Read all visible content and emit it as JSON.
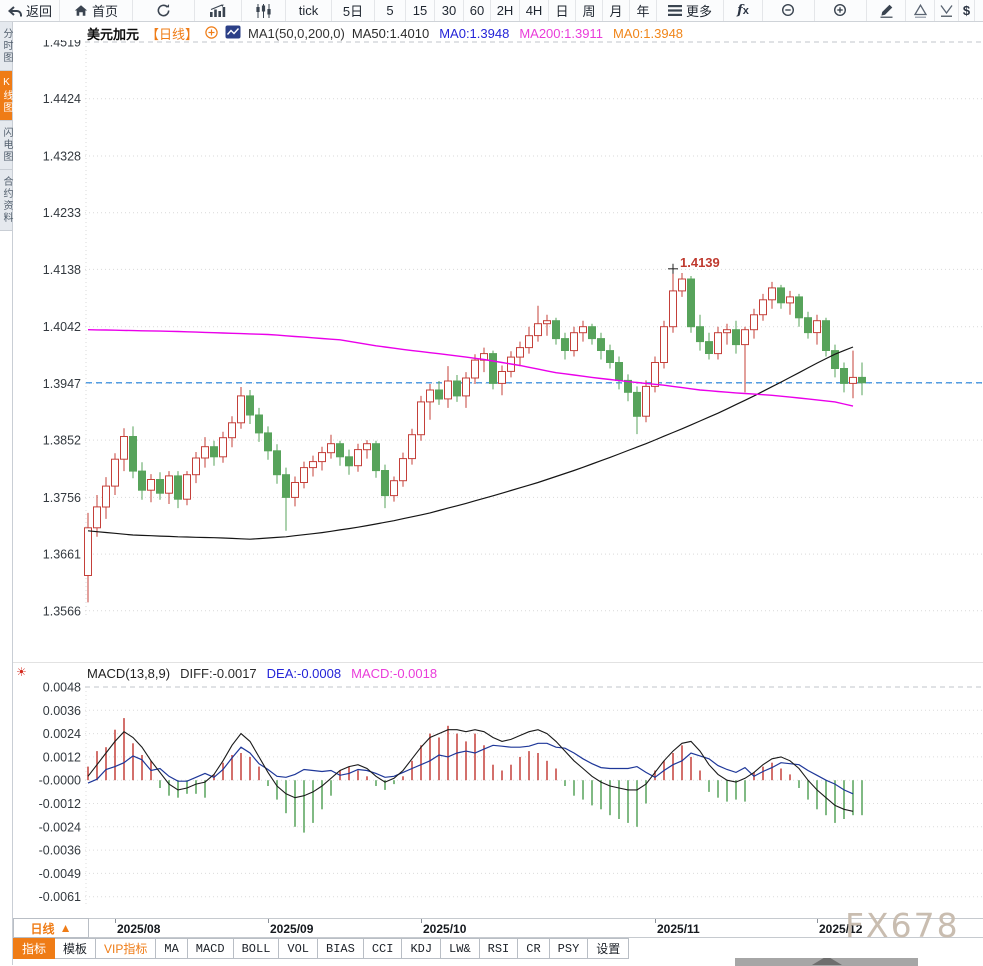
{
  "toolbar": {
    "items": [
      {
        "id": "back",
        "icon": "back",
        "label": "返回"
      },
      {
        "id": "home",
        "icon": "home",
        "label": "首页"
      },
      {
        "id": "refresh",
        "icon": "refresh"
      },
      {
        "id": "bar-chart",
        "icon": "bar-chart"
      },
      {
        "id": "candlestick",
        "icon": "candlestick"
      },
      {
        "id": "tick",
        "label": "tick"
      },
      {
        "id": "5d",
        "label": "5日"
      },
      {
        "id": "m5",
        "label": "5"
      },
      {
        "id": "m15",
        "label": "15"
      },
      {
        "id": "m30",
        "label": "30"
      },
      {
        "id": "m60",
        "label": "60"
      },
      {
        "id": "h2",
        "label": "2H"
      },
      {
        "id": "h4",
        "label": "4H"
      },
      {
        "id": "day",
        "label": "日"
      },
      {
        "id": "week",
        "label": "周"
      },
      {
        "id": "month",
        "label": "月"
      },
      {
        "id": "year",
        "label": "年"
      },
      {
        "id": "more",
        "icon": "menu",
        "label": "更多"
      },
      {
        "id": "fx",
        "icon": "fx"
      },
      {
        "id": "zoom-out",
        "icon": "zoom-out"
      },
      {
        "id": "zoom-in",
        "icon": "zoom-in"
      },
      {
        "id": "draw",
        "icon": "pencil"
      },
      {
        "id": "tri-up",
        "icon": "tri-up"
      },
      {
        "id": "tri-down",
        "icon": "tri-down"
      },
      {
        "id": "dollar",
        "icon": "dollar"
      }
    ]
  },
  "sidebar": {
    "items": [
      {
        "label": "分时图",
        "active": false
      },
      {
        "label": "K线图",
        "active": true
      },
      {
        "label": "闪电图",
        "active": false
      },
      {
        "label": "合约资料",
        "active": false
      }
    ]
  },
  "chart_header": {
    "symbol": "美元加元",
    "period": "【日线】",
    "ma_group": "MA1(50,0,200,0)",
    "ma_values": [
      {
        "text": "MA50:1.4010",
        "color": "#2b2b2b"
      },
      {
        "text": "MA0:1.3948",
        "color": "#2424d8"
      },
      {
        "text": "MA200:1.3911",
        "color": "#ea3cda"
      },
      {
        "text": "MA0:1.3948",
        "color": "#f08519"
      }
    ]
  },
  "macd_header": {
    "title": "MACD(13,8,9)",
    "values": [
      {
        "text": "DIFF:-0.0017",
        "color": "#2b2b2b"
      },
      {
        "text": "DEA:-0.0008",
        "color": "#2424d8"
      },
      {
        "text": "MACD:-0.0018",
        "color": "#ea3cda"
      }
    ]
  },
  "period_cell": {
    "label": "日线",
    "arrow": "▲"
  },
  "bottom_tabs": [
    {
      "label": "指标",
      "active": true
    },
    {
      "label": "模板"
    },
    {
      "label": "VIP指标",
      "vip": true
    },
    {
      "label": "MA"
    },
    {
      "label": "MACD"
    },
    {
      "label": "BOLL"
    },
    {
      "label": "VOL"
    },
    {
      "label": "BIAS"
    },
    {
      "label": "CCI"
    },
    {
      "label": "KDJ"
    },
    {
      "label": "LW&"
    },
    {
      "label": "RSI"
    },
    {
      "label": "CR"
    },
    {
      "label": "PSY"
    },
    {
      "label": "设置"
    }
  ],
  "watermark": "FX678",
  "chart_data": {
    "type": "candlestick",
    "title": "美元加元 日线",
    "price_ticks": [
      "1.4519",
      "1.4424",
      "1.4328",
      "1.4233",
      "1.4138",
      "1.4042",
      "1.3947",
      "1.3852",
      "1.3756",
      "1.3661",
      "1.3566"
    ],
    "macd_ticks": [
      "0.0048",
      "0.0036",
      "0.0024",
      "0.0012",
      "-0.0000",
      "-0.0012",
      "-0.0024",
      "-0.0036",
      "-0.0049",
      "-0.0061"
    ],
    "months": [
      {
        "label": "2025/08",
        "index": 3
      },
      {
        "label": "2025/09",
        "index": 20
      },
      {
        "label": "2025/10",
        "index": 37
      },
      {
        "label": "2025/11",
        "index": 63
      },
      {
        "label": "2025/12",
        "index": 81
      }
    ],
    "last_price": 1.3948,
    "annotation": {
      "text": "1.4139",
      "index": 65,
      "price": 1.4139
    },
    "candles": [
      [
        1.3625,
        1.373,
        1.358,
        1.3705
      ],
      [
        1.3705,
        1.376,
        1.369,
        1.374
      ],
      [
        1.374,
        1.379,
        1.372,
        1.3775
      ],
      [
        1.3775,
        1.383,
        1.376,
        1.382
      ],
      [
        1.382,
        1.3872,
        1.38,
        1.3858
      ],
      [
        1.3858,
        1.3875,
        1.3788,
        1.38
      ],
      [
        1.38,
        1.3815,
        1.3752,
        1.3768
      ],
      [
        1.3768,
        1.3795,
        1.3748,
        1.3786
      ],
      [
        1.3786,
        1.3798,
        1.3752,
        1.3763
      ],
      [
        1.3763,
        1.38,
        1.3745,
        1.3792
      ],
      [
        1.3792,
        1.38,
        1.3738,
        1.3753
      ],
      [
        1.3753,
        1.38,
        1.3743,
        1.3794
      ],
      [
        1.3794,
        1.3832,
        1.378,
        1.3822
      ],
      [
        1.3822,
        1.3857,
        1.3806,
        1.3841
      ],
      [
        1.3841,
        1.3851,
        1.3809,
        1.3824
      ],
      [
        1.3824,
        1.3866,
        1.3814,
        1.3856
      ],
      [
        1.3856,
        1.3892,
        1.384,
        1.3881
      ],
      [
        1.3881,
        1.3941,
        1.3871,
        1.3926
      ],
      [
        1.3926,
        1.3936,
        1.3879,
        1.3894
      ],
      [
        1.3894,
        1.3906,
        1.3849,
        1.3864
      ],
      [
        1.3864,
        1.3875,
        1.3819,
        1.3834
      ],
      [
        1.3834,
        1.3845,
        1.3779,
        1.3794
      ],
      [
        1.3794,
        1.3806,
        1.37,
        1.3756
      ],
      [
        1.3756,
        1.3791,
        1.3741,
        1.3781
      ],
      [
        1.3781,
        1.3816,
        1.3771,
        1.3806
      ],
      [
        1.3806,
        1.3826,
        1.3791,
        1.3816
      ],
      [
        1.3816,
        1.3841,
        1.3801,
        1.3831
      ],
      [
        1.3831,
        1.3861,
        1.3821,
        1.3846
      ],
      [
        1.3846,
        1.3851,
        1.3809,
        1.3824
      ],
      [
        1.3824,
        1.3836,
        1.3794,
        1.3809
      ],
      [
        1.3809,
        1.3846,
        1.3799,
        1.3836
      ],
      [
        1.3836,
        1.3852,
        1.3821,
        1.3846
      ],
      [
        1.3846,
        1.3851,
        1.3789,
        1.3801
      ],
      [
        1.3801,
        1.3811,
        1.3738,
        1.3759
      ],
      [
        1.3759,
        1.3791,
        1.3749,
        1.3784
      ],
      [
        1.3784,
        1.3831,
        1.3774,
        1.3821
      ],
      [
        1.3821,
        1.3871,
        1.3811,
        1.3861
      ],
      [
        1.3861,
        1.3926,
        1.3851,
        1.3916
      ],
      [
        1.3916,
        1.3946,
        1.3886,
        1.3936
      ],
      [
        1.3936,
        1.3951,
        1.3911,
        1.3921
      ],
      [
        1.3921,
        1.3976,
        1.3906,
        1.3951
      ],
      [
        1.3951,
        1.3961,
        1.3916,
        1.3926
      ],
      [
        1.3926,
        1.3966,
        1.3906,
        1.3956
      ],
      [
        1.3956,
        1.3996,
        1.3946,
        1.3986
      ],
      [
        1.3986,
        1.4007,
        1.3966,
        1.3997
      ],
      [
        1.3997,
        1.4002,
        1.3937,
        1.3947
      ],
      [
        1.3947,
        1.3977,
        1.3927,
        1.3967
      ],
      [
        1.3967,
        1.4001,
        1.3957,
        1.3991
      ],
      [
        1.3991,
        1.4017,
        1.3976,
        1.4007
      ],
      [
        1.4007,
        1.4042,
        1.3997,
        1.4027
      ],
      [
        1.4027,
        1.4077,
        1.4017,
        1.4047
      ],
      [
        1.4047,
        1.4062,
        1.4027,
        1.4052
      ],
      [
        1.4052,
        1.4057,
        1.4012,
        1.4022
      ],
      [
        1.4022,
        1.4032,
        1.3987,
        1.4002
      ],
      [
        1.4002,
        1.4042,
        1.3992,
        1.4032
      ],
      [
        1.4032,
        1.4052,
        1.4017,
        1.4042
      ],
      [
        1.4042,
        1.4047,
        1.4012,
        1.4022
      ],
      [
        1.4022,
        1.4032,
        1.3987,
        1.4002
      ],
      [
        1.4002,
        1.4012,
        1.3972,
        1.3982
      ],
      [
        1.3982,
        1.3992,
        1.3937,
        1.3952
      ],
      [
        1.3952,
        1.3962,
        1.3917,
        1.3932
      ],
      [
        1.3932,
        1.3942,
        1.3862,
        1.3892
      ],
      [
        1.3892,
        1.3952,
        1.3882,
        1.3942
      ],
      [
        1.3942,
        1.3992,
        1.3932,
        1.3982
      ],
      [
        1.3982,
        1.4052,
        1.3972,
        1.4042
      ],
      [
        1.4042,
        1.4139,
        1.4032,
        1.4102
      ],
      [
        1.4102,
        1.4132,
        1.4092,
        1.4122
      ],
      [
        1.4122,
        1.4127,
        1.4032,
        1.4042
      ],
      [
        1.4042,
        1.4062,
        1.4002,
        1.4017
      ],
      [
        1.4017,
        1.4032,
        1.3987,
        1.3997
      ],
      [
        1.3997,
        1.4042,
        1.3987,
        1.4032
      ],
      [
        1.4032,
        1.4047,
        1.4012,
        1.4037
      ],
      [
        1.4037,
        1.4052,
        1.3997,
        1.4012
      ],
      [
        1.4012,
        1.4042,
        1.3932,
        1.4037
      ],
      [
        1.4037,
        1.4072,
        1.4022,
        1.4062
      ],
      [
        1.4062,
        1.4097,
        1.4052,
        1.4087
      ],
      [
        1.4087,
        1.4117,
        1.4072,
        1.4107
      ],
      [
        1.4107,
        1.4112,
        1.4072,
        1.4082
      ],
      [
        1.4082,
        1.4102,
        1.4062,
        1.4092
      ],
      [
        1.4092,
        1.4097,
        1.4042,
        1.4057
      ],
      [
        1.4057,
        1.4067,
        1.4022,
        1.4032
      ],
      [
        1.4032,
        1.4062,
        1.4012,
        1.4052
      ],
      [
        1.4052,
        1.4057,
        1.3992,
        1.4002
      ],
      [
        1.4002,
        1.4012,
        1.3957,
        1.3972
      ],
      [
        1.3972,
        1.3982,
        1.3932,
        1.3947
      ],
      [
        1.3947,
        1.4002,
        1.3922,
        1.3957
      ],
      [
        1.3957,
        1.3982,
        1.3927,
        1.3948
      ]
    ],
    "ma50_keypoints": [
      [
        0,
        1.37
      ],
      [
        5,
        1.3693
      ],
      [
        10,
        1.369
      ],
      [
        15,
        1.3688
      ],
      [
        18,
        1.3686
      ],
      [
        22,
        1.369
      ],
      [
        26,
        1.3697
      ],
      [
        30,
        1.3706
      ],
      [
        34,
        1.3717
      ],
      [
        38,
        1.373
      ],
      [
        42,
        1.3746
      ],
      [
        46,
        1.3763
      ],
      [
        50,
        1.3781
      ],
      [
        54,
        1.3801
      ],
      [
        58,
        1.3823
      ],
      [
        62,
        1.3846
      ],
      [
        66,
        1.3871
      ],
      [
        70,
        1.3897
      ],
      [
        74,
        1.3926
      ],
      [
        78,
        1.3957
      ],
      [
        81,
        1.3981
      ],
      [
        83,
        1.3996
      ],
      [
        85,
        1.4008
      ]
    ],
    "ma200_keypoints": [
      [
        0,
        1.4037
      ],
      [
        10,
        1.4034
      ],
      [
        20,
        1.4029
      ],
      [
        28,
        1.402
      ],
      [
        32,
        1.401
      ],
      [
        36,
        1.4002
      ],
      [
        40,
        1.3995
      ],
      [
        44,
        1.3987
      ],
      [
        48,
        1.3977
      ],
      [
        52,
        1.3965
      ],
      [
        56,
        1.3957
      ],
      [
        60,
        1.395
      ],
      [
        64,
        1.3944
      ],
      [
        68,
        1.3936
      ],
      [
        72,
        1.3931
      ],
      [
        76,
        1.3927
      ],
      [
        80,
        1.3921
      ],
      [
        83,
        1.3916
      ],
      [
        85,
        1.3909
      ]
    ],
    "macd": {
      "diff": [
        0.0002,
        0.0008,
        0.0014,
        0.002,
        0.0025,
        0.0022,
        0.0017,
        0.001,
        0.0004,
        -0.0002,
        -0.0005,
        -0.0004,
        -0.0002,
        -0.0001,
        0.0003,
        0.001,
        0.0018,
        0.0024,
        0.002,
        0.0012,
        0.0004,
        -0.0003,
        -0.0007,
        -0.0009,
        -0.0008,
        -0.0006,
        -0.0003,
        0.0001,
        0.0005,
        0.0007,
        0.0008,
        0.0006,
        0.0002,
        -0.0001,
        0.0001,
        0.0005,
        0.0011,
        0.0017,
        0.0022,
        0.0024,
        0.0026,
        0.0026,
        0.0025,
        0.0026,
        0.0025,
        0.0022,
        0.002,
        0.0021,
        0.0023,
        0.0025,
        0.0026,
        0.0024,
        0.002,
        0.0015,
        0.001,
        0.0006,
        0.0002,
        -0.0001,
        -0.0003,
        -0.0004,
        -0.0005,
        -0.0005,
        -0.0002,
        0.0004,
        0.001,
        0.0015,
        0.0019,
        0.002,
        0.0015,
        0.0008,
        0.0003,
        0.0,
        -0.0001,
        0.0001,
        0.0004,
        0.0008,
        0.0011,
        0.0012,
        0.001,
        0.0006,
        0.0,
        -0.0005,
        -0.0009,
        -0.0013,
        -0.0015,
        -0.0016,
        -0.0017
      ],
      "hist": [
        0.0007,
        0.0015,
        0.0017,
        0.0026,
        0.0032,
        0.0019,
        0.0013,
        0.001,
        -0.0004,
        -0.0008,
        -0.0009,
        -0.0007,
        -0.0007,
        -0.0009,
        0.0003,
        0.0009,
        0.0013,
        0.0014,
        0.0012,
        0.0007,
        -0.0003,
        -0.001,
        -0.0017,
        -0.0024,
        -0.0027,
        -0.0022,
        -0.0015,
        -0.0008,
        0.0005,
        0.0007,
        0.0005,
        0.0002,
        -0.0003,
        -0.0005,
        -0.0002,
        0.0002,
        0.001,
        0.0018,
        0.0024,
        0.0022,
        0.0028,
        0.0024,
        0.002,
        0.0024,
        0.0018,
        0.0008,
        0.0005,
        0.0008,
        0.0012,
        0.0015,
        0.0014,
        0.001,
        0.0006,
        -0.0003,
        -0.0008,
        -0.001,
        -0.0013,
        -0.0015,
        -0.0018,
        -0.002,
        -0.0022,
        -0.0024,
        -0.0012,
        0.0005,
        0.001,
        0.0014,
        0.0018,
        0.0012,
        0.0005,
        -0.0006,
        -0.0009,
        -0.0011,
        -0.001,
        -0.0011,
        0.0004,
        0.0007,
        0.0009,
        0.0006,
        0.0003,
        -0.0004,
        -0.001,
        -0.0015,
        -0.0018,
        -0.0022,
        -0.002,
        -0.0018,
        -0.0018
      ]
    },
    "colors": {
      "up": "#c4403a",
      "down": "#57a35b",
      "ma50": "#151515",
      "ma200": "#ea00ea",
      "price_line": "#1d7fd8",
      "diff": "#1a1a1a",
      "dea": "#1e3799",
      "annotation": "#bf3a2f",
      "accent": "#ef7c16"
    }
  }
}
